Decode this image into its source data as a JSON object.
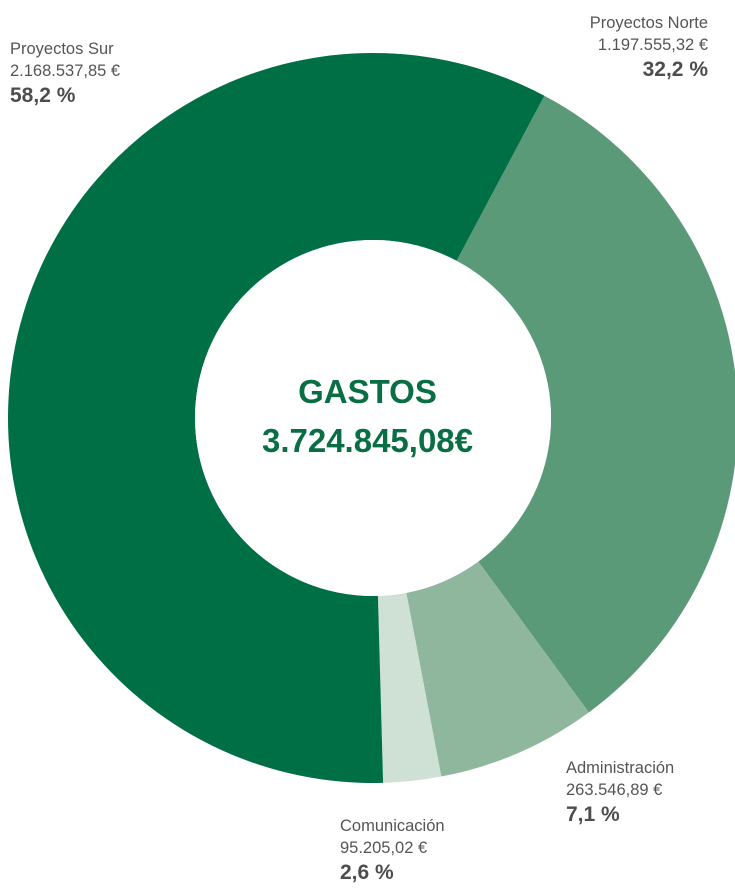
{
  "chart_data": {
    "type": "pie",
    "subtype": "donut",
    "center_title": "GASTOS",
    "center_total": "3.724.845,08€",
    "slices": [
      {
        "name": "Proyectos Norte",
        "value": 1197555.32,
        "value_label": "1.197.555,32 €",
        "percent": 32.2,
        "percent_label": "32,2 %",
        "color": "#5a9a78"
      },
      {
        "name": "Administración",
        "value": 263546.89,
        "value_label": "263.546,89 €",
        "percent": 7.1,
        "percent_label": "7,1 %",
        "color": "#8fb79e"
      },
      {
        "name": "Comunicación",
        "value": 95205.02,
        "value_label": "95.205,02 €",
        "percent": 2.6,
        "percent_label": "2,6 %",
        "color": "#cfe0d4"
      },
      {
        "name": "Proyectos Sur",
        "value": 2168537.85,
        "value_label": "2.168.537,85 €",
        "percent": 58.2,
        "percent_label": "58,2 %",
        "color": "#006f45"
      }
    ]
  }
}
